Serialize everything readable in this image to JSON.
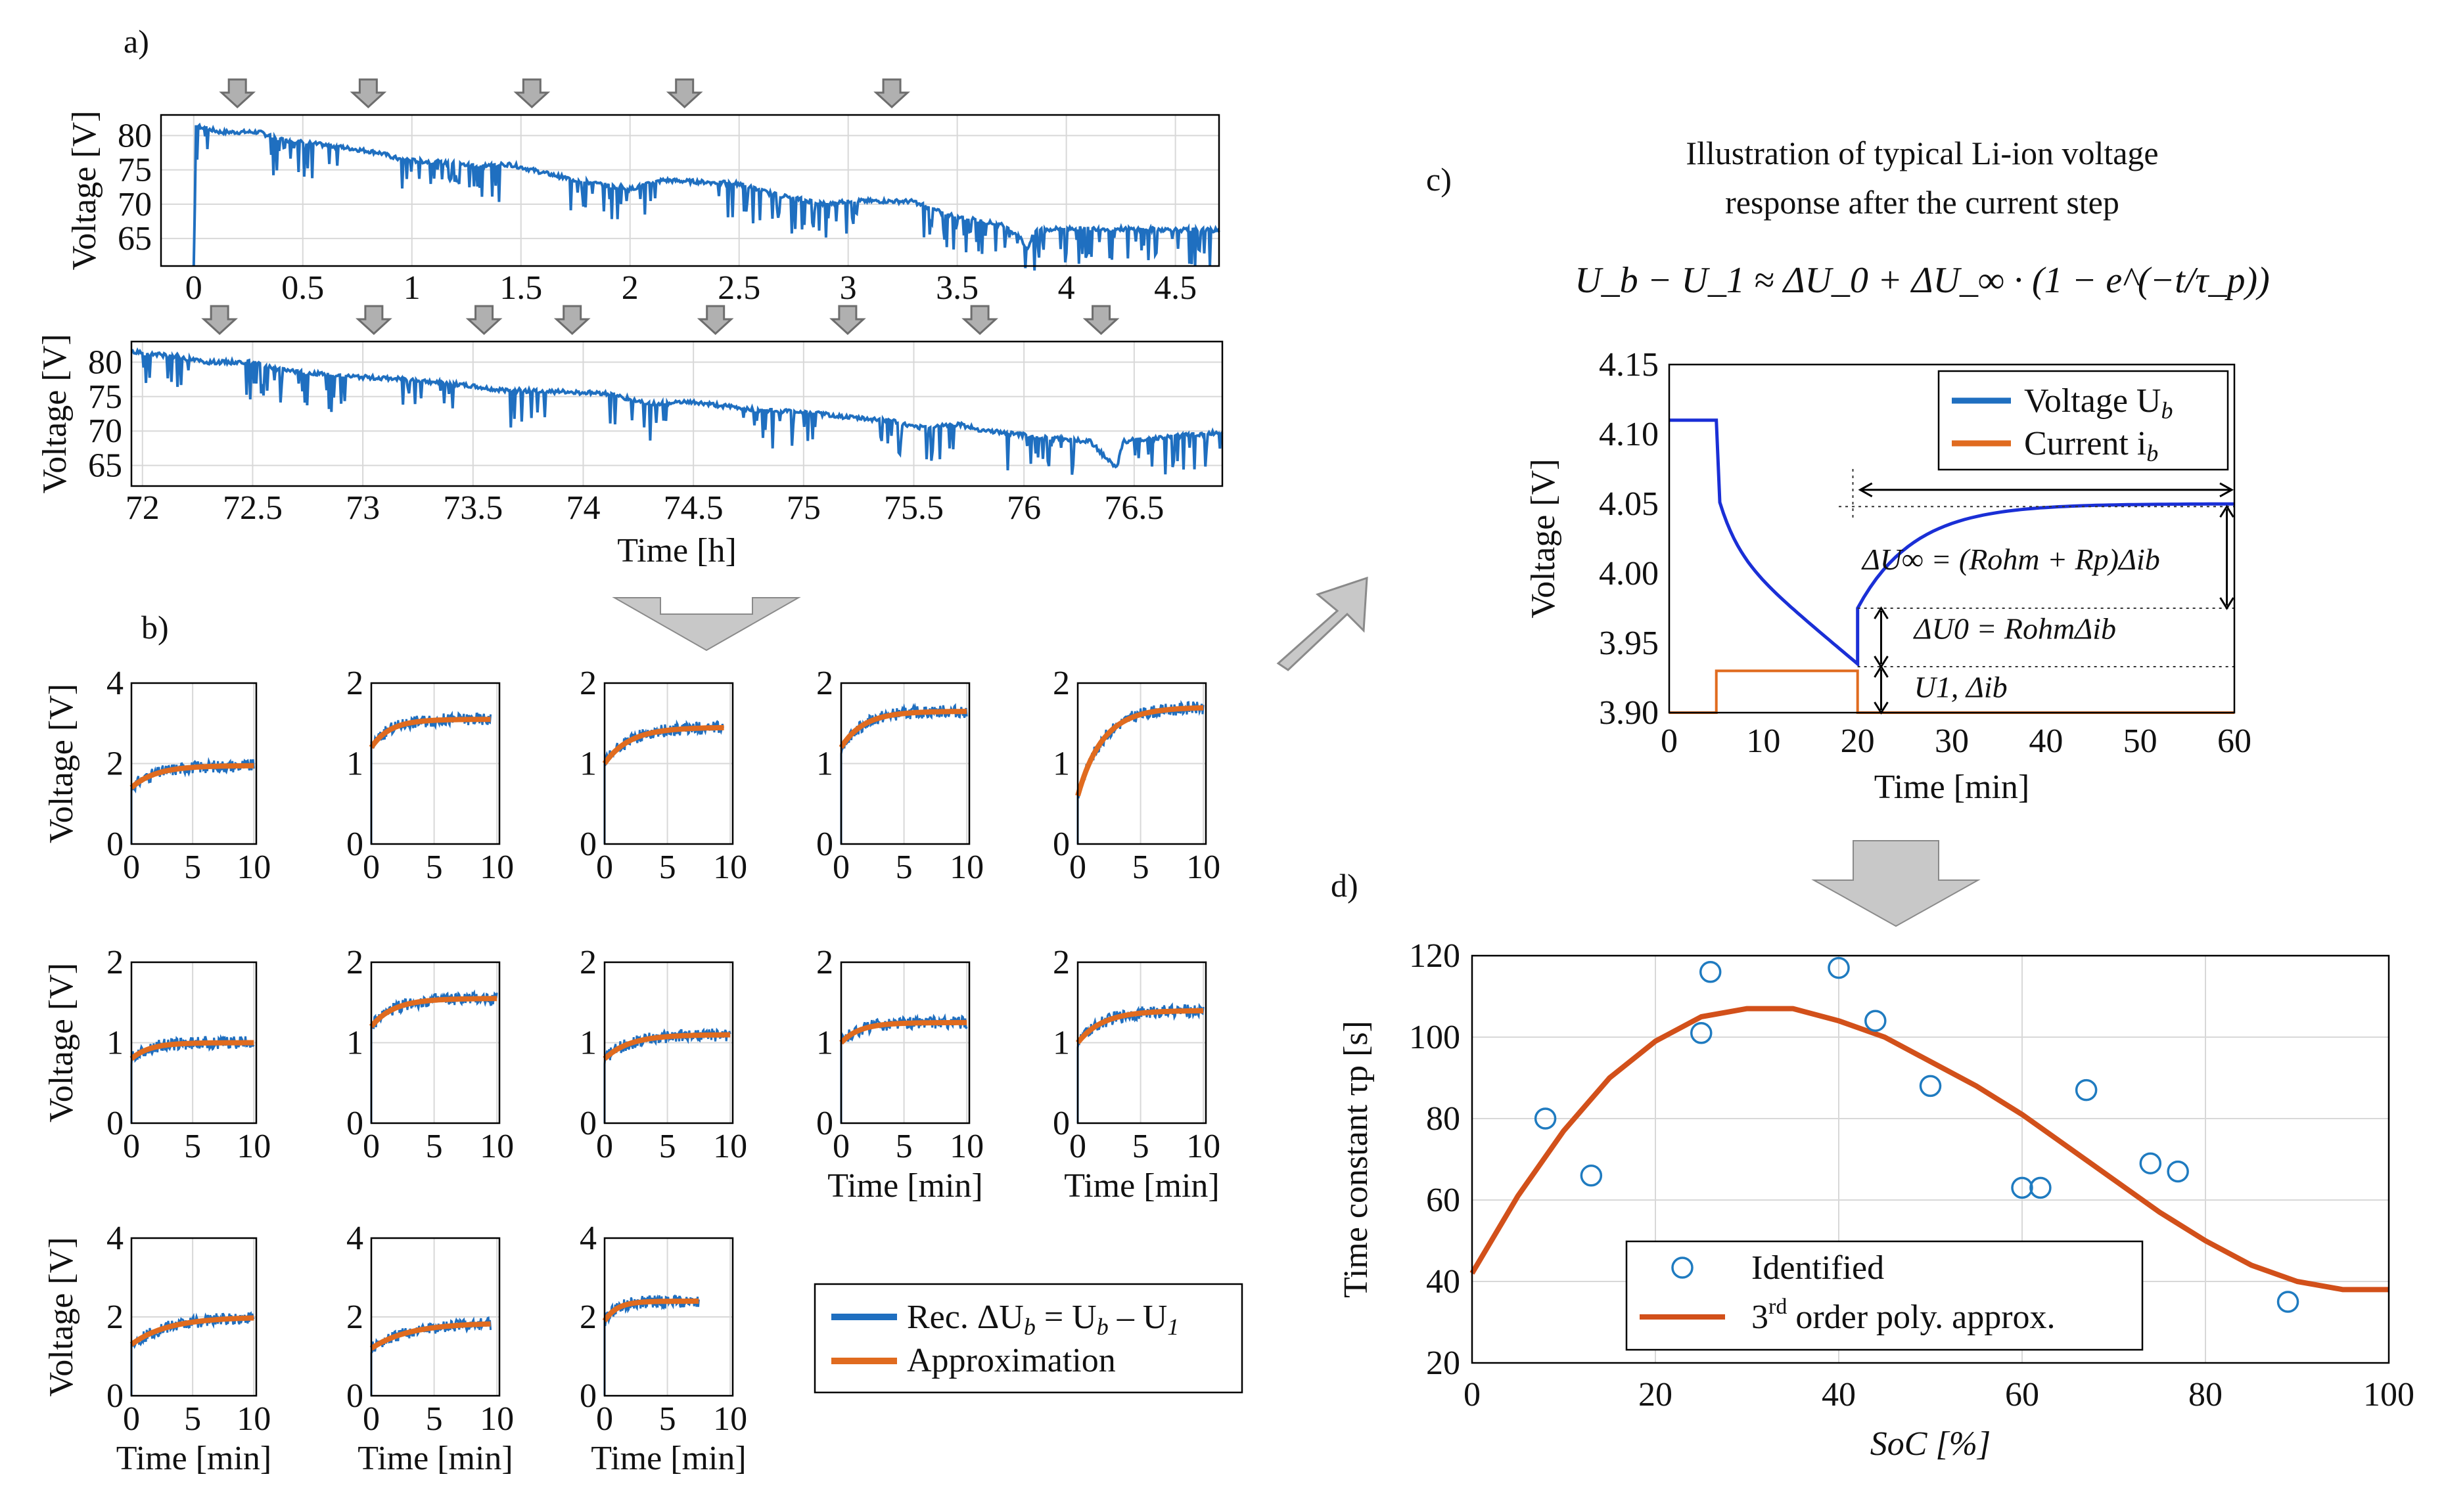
{
  "panel_labels": {
    "a": "a)",
    "b": "b)",
    "c": "c)",
    "d": "d)"
  },
  "colors": {
    "recorded": "#1f6fc0",
    "approx": "#e06b1f",
    "poly": "#d2501a",
    "arrow": "#c8c8c8",
    "grid": "#d8d8d8"
  },
  "chart_data": [
    {
      "id": "a_top",
      "type": "line",
      "ylabel": "Voltage [V]",
      "xlabel": "",
      "xlim": [
        -0.15,
        4.7
      ],
      "ylim": [
        61,
        83
      ],
      "xticks": [
        0,
        0.5,
        1,
        1.5,
        2,
        2.5,
        3,
        3.5,
        4,
        4.5
      ],
      "xtick_labels": [
        "0",
        "0.5",
        "1",
        "1.5",
        "2",
        "2.5",
        "3",
        "3.5",
        "4",
        "4.5"
      ],
      "yticks": [
        65,
        70,
        75,
        80
      ],
      "ytick_labels": [
        "65",
        "70",
        "75",
        "80"
      ],
      "series": [
        {
          "name": "Voltage",
          "x": [
            0,
            0.01,
            0.12,
            0.3,
            0.38,
            0.7,
            0.85,
            0.95,
            1.3,
            1.45,
            1.6,
            1.75,
            2.0,
            2.15,
            2.5,
            2.65,
            2.9,
            3.0,
            3.3,
            3.45,
            3.7,
            3.78,
            3.82,
            3.86,
            4.0,
            4.7
          ],
          "y": [
            61,
            81.5,
            80.5,
            80.5,
            79.5,
            78.2,
            77.5,
            76.5,
            75.6,
            75.8,
            74.6,
            73.5,
            72.2,
            73.5,
            73.0,
            71.5,
            70.0,
            70.5,
            70.4,
            68.5,
            67.0,
            65.5,
            63.5,
            66.2,
            66.5,
            66.2
          ]
        }
      ],
      "markers_x": [
        0.2,
        0.8,
        1.55,
        2.25,
        3.2
      ]
    },
    {
      "id": "a_bottom",
      "type": "line",
      "ylabel": "Voltage [V]",
      "xlabel": "Time [h]",
      "xlim": [
        71.95,
        76.9
      ],
      "ylim": [
        62,
        83
      ],
      "xticks": [
        72,
        72.5,
        73,
        73.5,
        74,
        74.5,
        75,
        75.5,
        76,
        76.5
      ],
      "xtick_labels": [
        "72",
        "72.5",
        "73",
        "73.5",
        "74",
        "74.5",
        "75",
        "75.5",
        "76",
        "76.5"
      ],
      "yticks": [
        65,
        70,
        75,
        80
      ],
      "ytick_labels": [
        "65",
        "70",
        "75",
        "80"
      ],
      "series": [
        {
          "name": "Voltage",
          "x": [
            71.95,
            72.1,
            72.3,
            72.5,
            72.6,
            72.9,
            73.2,
            73.35,
            73.5,
            73.6,
            73.8,
            74.1,
            74.3,
            74.5,
            74.8,
            75.0,
            75.2,
            75.4,
            75.5,
            75.7,
            75.8,
            76.1,
            76.3,
            76.42,
            76.45,
            76.6,
            76.9
          ],
          "y": [
            81.5,
            81.0,
            80.0,
            80.0,
            79.0,
            78.0,
            77.5,
            77.0,
            76.5,
            76.0,
            75.8,
            75.5,
            74.0,
            74.2,
            73.0,
            72.8,
            72.0,
            71.5,
            70.5,
            71.0,
            70.2,
            69.0,
            68.5,
            64.5,
            68.5,
            69.0,
            69.8
          ]
        }
      ],
      "markers_x": [
        72.35,
        73.05,
        73.55,
        73.95,
        74.6,
        75.2,
        75.8,
        76.35
      ]
    },
    {
      "id": "b_grid",
      "type": "line",
      "xlabel": "Time [min]",
      "ylabel": "Voltage [V]",
      "subplots": [
        {
          "ymax": 4,
          "yticks": [
            "0",
            "2",
            "4"
          ],
          "xmax": 10.2,
          "xticks": [
            "0",
            "5",
            "10"
          ],
          "start": 1.4,
          "plateau": 1.95,
          "tau": 2.0,
          "end": 10
        },
        {
          "ymax": 2,
          "yticks": [
            "0",
            "1",
            "2"
          ],
          "xmax": 10.2,
          "xticks": [
            "0",
            "5",
            "10"
          ],
          "start": 1.2,
          "plateau": 1.55,
          "tau": 1.5,
          "end": 9.5
        },
        {
          "ymax": 2,
          "yticks": [
            "0",
            "1",
            "2"
          ],
          "xmax": 10.2,
          "xticks": [
            "0",
            "5",
            "10"
          ],
          "start": 1.0,
          "plateau": 1.45,
          "tau": 2.0,
          "end": 9.5
        },
        {
          "ymax": 2,
          "yticks": [
            "0",
            "1",
            "2"
          ],
          "xmax": 10.2,
          "xticks": [
            "0",
            "5",
            "10"
          ],
          "start": 1.2,
          "plateau": 1.65,
          "tau": 1.8,
          "end": 10
        },
        {
          "ymax": 2,
          "yticks": [
            "0",
            "1",
            "2"
          ],
          "xmax": 10.2,
          "xticks": [
            "0",
            "5",
            "10"
          ],
          "start": 0.6,
          "plateau": 1.7,
          "tau": 2.0,
          "end": 10
        },
        {
          "ymax": 2,
          "yticks": [
            "0",
            "1",
            "2"
          ],
          "xmax": 10.2,
          "xticks": [
            "0",
            "5",
            "10"
          ],
          "start": 0.8,
          "plateau": 1.0,
          "tau": 1.5,
          "end": 10
        },
        {
          "ymax": 2,
          "yticks": [
            "0",
            "1",
            "2"
          ],
          "xmax": 10.2,
          "xticks": [
            "0",
            "5",
            "10"
          ],
          "start": 1.2,
          "plateau": 1.55,
          "tau": 1.8,
          "end": 10
        },
        {
          "ymax": 2,
          "yticks": [
            "0",
            "1",
            "2"
          ],
          "xmax": 10.2,
          "xticks": [
            "0",
            "5",
            "10"
          ],
          "start": 0.8,
          "plateau": 1.1,
          "tau": 2.0,
          "end": 10
        },
        {
          "ymax": 2,
          "yticks": [
            "0",
            "1",
            "2"
          ],
          "xmax": 10.2,
          "xticks": [
            "0",
            "5",
            "10"
          ],
          "start": 1.0,
          "plateau": 1.25,
          "tau": 1.5,
          "end": 10
        },
        {
          "ymax": 2,
          "yticks": [
            "0",
            "1",
            "2"
          ],
          "xmax": 10.2,
          "xticks": [
            "0",
            "5",
            "10"
          ],
          "start": 1.0,
          "plateau": 1.4,
          "tau": 2.0,
          "end": 10
        },
        {
          "ymax": 4,
          "yticks": [
            "0",
            "2",
            "4"
          ],
          "xmax": 10.2,
          "xticks": [
            "0",
            "5",
            "10"
          ],
          "start": 1.3,
          "plateau": 2.0,
          "tau": 3.0,
          "end": 10
        },
        {
          "ymax": 4,
          "yticks": [
            "0",
            "2",
            "4"
          ],
          "xmax": 10.2,
          "xticks": [
            "0",
            "5",
            "10"
          ],
          "start": 1.2,
          "plateau": 1.85,
          "tau": 3.0,
          "end": 9.5
        },
        {
          "ymax": 4,
          "yticks": [
            "0",
            "2",
            "4"
          ],
          "xmax": 10.2,
          "xticks": [
            "0",
            "5",
            "10"
          ],
          "start": 1.9,
          "plateau": 2.4,
          "tau": 1.0,
          "end": 7.5
        }
      ],
      "legend": {
        "recorded": "Rec. ΔU",
        "recorded_sub": "b",
        "recorded_eq": " = U",
        "recorded_eq_sub1": "b",
        "recorded_minus": " – U",
        "recorded_eq_sub2": "1",
        "approx": "Approximation"
      }
    },
    {
      "id": "c",
      "type": "line",
      "title_line1": "Illustration of typical Li-ion voltage",
      "title_line2": "response after the current step",
      "equation": "U_b − U_1 ≈ ΔU_0 + ΔU_∞ · (1 − e^(−t/τ_p))",
      "xlabel": "Time [min]",
      "ylabel": "Voltage [V]",
      "xlim": [
        0,
        60
      ],
      "ylim": [
        3.9,
        4.15
      ],
      "xticks": [
        0,
        10,
        20,
        30,
        40,
        50,
        60
      ],
      "xtick_labels": [
        "0",
        "10",
        "20",
        "30",
        "40",
        "50",
        "60"
      ],
      "yticks": [
        3.9,
        3.95,
        4.0,
        4.05,
        4.1,
        4.15
      ],
      "ytick_labels": [
        "3.90",
        "3.95",
        "4.00",
        "4.05",
        "4.10",
        "4.15"
      ],
      "voltage": {
        "pre": 4.11,
        "t_step": 5,
        "t_release": 20,
        "at_release": 3.935,
        "after_release": 3.975,
        "final": 4.05,
        "tau_decay": 8,
        "tau_recover": 6
      },
      "current": {
        "low": 3.9,
        "high": 3.93,
        "t_on": 5,
        "t_off": 20
      },
      "legend": {
        "voltage": "Voltage U",
        "voltage_sub": "b",
        "current": "Current i",
        "current_sub": "b"
      },
      "annotations": {
        "du_inf": "ΔU∞ = (Rohm + Rp)Δib",
        "du_0": "ΔU0 = RohmΔib",
        "u1": "U1, Δib"
      }
    },
    {
      "id": "d",
      "type": "scatter",
      "xlabel": "SoC [%]",
      "ylabel": "Time constant τp [s]",
      "xlim": [
        0,
        100
      ],
      "ylim": [
        20,
        120
      ],
      "xticks": [
        0,
        20,
        40,
        60,
        80,
        100
      ],
      "xtick_labels": [
        "0",
        "20",
        "40",
        "60",
        "80",
        "100"
      ],
      "yticks": [
        20,
        40,
        60,
        80,
        100,
        120
      ],
      "ytick_labels": [
        "20",
        "40",
        "60",
        "80",
        "100",
        "120"
      ],
      "identified": {
        "x": [
          8,
          13,
          25,
          26,
          40,
          44,
          50,
          60,
          62,
          67,
          74,
          77,
          89
        ],
        "y": [
          80,
          66,
          101,
          116,
          117,
          104,
          88,
          63,
          63,
          87,
          69,
          67,
          35
        ]
      },
      "poly": {
        "x": [
          0,
          5,
          10,
          15,
          20,
          25,
          30,
          35,
          40,
          45,
          50,
          55,
          60,
          65,
          70,
          75,
          80,
          85,
          90,
          95,
          100
        ],
        "y": [
          42,
          61,
          77,
          90,
          99,
          105,
          107,
          107,
          104,
          100,
          94,
          88,
          81,
          73,
          65,
          57,
          50,
          44,
          40,
          38,
          38
        ]
      },
      "legend": {
        "identified": "Identified",
        "poly_prefix": "3",
        "poly_sup": "rd",
        "poly_suffix": " order poly. approx."
      }
    }
  ]
}
